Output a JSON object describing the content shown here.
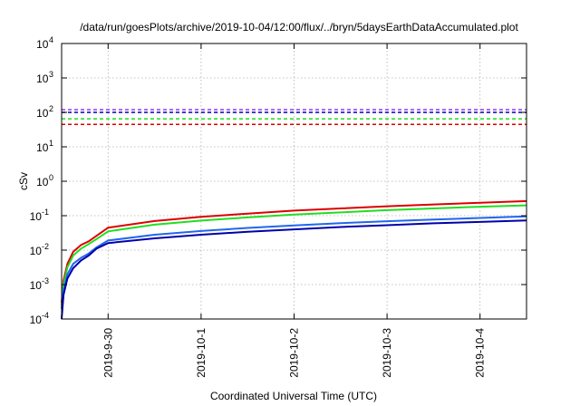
{
  "chart_data": {
    "type": "line",
    "title": "/data/run/goesPlots/archive/2019-10-04/12:00/flux/../bryn/5daysEarthDataAccumulated.plot",
    "xlabel": "Coordinated Universal Time (UTC)",
    "ylabel": "cSv",
    "y_scale": "log",
    "ylim": [
      0.0001,
      10000
    ],
    "xlim": [
      "2019-09-29 12:00",
      "2019-10-04 12:00"
    ],
    "x_ticks": [
      {
        "label": "2019-9-30",
        "t": "2019-09-30 00:00"
      },
      {
        "label": "2019-10-1",
        "t": "2019-10-01 00:00"
      },
      {
        "label": "2019-10-2",
        "t": "2019-10-02 00:00"
      },
      {
        "label": "2019-10-3",
        "t": "2019-10-03 00:00"
      },
      {
        "label": "2019-10-4",
        "t": "2019-10-04 00:00"
      }
    ],
    "y_ticks": [
      {
        "base": "10",
        "exp": "-4",
        "value": 0.0001
      },
      {
        "base": "10",
        "exp": "-3",
        "value": 0.001
      },
      {
        "base": "10",
        "exp": "-2",
        "value": 0.01
      },
      {
        "base": "10",
        "exp": "-1",
        "value": 0.1
      },
      {
        "base": "10",
        "exp": "0",
        "value": 1
      },
      {
        "base": "10",
        "exp": "1",
        "value": 10
      },
      {
        "base": "10",
        "exp": "2",
        "value": 100
      },
      {
        "base": "10",
        "exp": "3",
        "value": 1000
      },
      {
        "base": "10",
        "exp": "4",
        "value": 10000
      }
    ],
    "grid": true,
    "series": [
      {
        "color": "#dd0000",
        "style": "solid",
        "x": [
          "2019-09-29 12:00",
          "2019-09-29 12:30",
          "2019-09-29 13:30",
          "2019-09-29 15:00",
          "2019-09-29 17:00",
          "2019-09-29 19:00",
          "2019-09-29 21:00",
          "2019-09-30 00:00",
          "2019-09-30 12:00",
          "2019-10-01 00:00",
          "2019-10-01 12:00",
          "2019-10-02 00:00",
          "2019-10-02 12:00",
          "2019-10-03 00:00",
          "2019-10-03 12:00",
          "2019-10-04 00:00",
          "2019-10-04 12:00"
        ],
        "y": [
          0.0003,
          0.0013,
          0.004,
          0.009,
          0.014,
          0.018,
          0.026,
          0.045,
          0.07,
          0.093,
          0.115,
          0.14,
          0.162,
          0.188,
          0.212,
          0.238,
          0.265
        ]
      },
      {
        "color": "#22dd22",
        "style": "solid",
        "x": [
          "2019-09-29 12:00",
          "2019-09-29 12:30",
          "2019-09-29 13:30",
          "2019-09-29 15:00",
          "2019-09-29 17:00",
          "2019-09-29 19:00",
          "2019-09-29 21:00",
          "2019-09-30 00:00",
          "2019-09-30 12:00",
          "2019-10-01 00:00",
          "2019-10-01 12:00",
          "2019-10-02 00:00",
          "2019-10-02 12:00",
          "2019-10-03 00:00",
          "2019-10-03 12:00",
          "2019-10-04 00:00",
          "2019-10-04 12:00"
        ],
        "y": [
          0.00025,
          0.001,
          0.0032,
          0.007,
          0.011,
          0.015,
          0.021,
          0.035,
          0.055,
          0.072,
          0.089,
          0.108,
          0.124,
          0.145,
          0.162,
          0.182,
          0.2
        ]
      },
      {
        "color": "#2266ee",
        "style": "solid",
        "x": [
          "2019-09-29 12:00",
          "2019-09-29 12:30",
          "2019-09-29 13:30",
          "2019-09-29 15:00",
          "2019-09-29 17:00",
          "2019-09-29 19:00",
          "2019-09-29 21:00",
          "2019-09-30 00:00",
          "2019-09-30 12:00",
          "2019-10-01 00:00",
          "2019-10-01 12:00",
          "2019-10-02 00:00",
          "2019-10-02 12:00",
          "2019-10-03 00:00",
          "2019-10-03 12:00",
          "2019-10-04 00:00",
          "2019-10-04 12:00"
        ],
        "y": [
          0.0002,
          0.0007,
          0.002,
          0.004,
          0.006,
          0.008,
          0.012,
          0.019,
          0.028,
          0.036,
          0.044,
          0.052,
          0.061,
          0.069,
          0.077,
          0.086,
          0.095
        ]
      },
      {
        "color": "#0000aa",
        "style": "solid",
        "x": [
          "2019-09-29 12:00",
          "2019-09-29 12:30",
          "2019-09-29 13:30",
          "2019-09-29 15:00",
          "2019-09-29 17:00",
          "2019-09-29 19:00",
          "2019-09-29 21:00",
          "2019-09-30 00:00",
          "2019-09-30 12:00",
          "2019-10-01 00:00",
          "2019-10-01 12:00",
          "2019-10-02 00:00",
          "2019-10-02 12:00",
          "2019-10-03 00:00",
          "2019-10-03 12:00",
          "2019-10-04 00:00",
          "2019-10-04 12:00"
        ],
        "y": [
          0.0001,
          0.0005,
          0.0015,
          0.003,
          0.005,
          0.007,
          0.011,
          0.016,
          0.022,
          0.028,
          0.034,
          0.04,
          0.047,
          0.053,
          0.06,
          0.066,
          0.073
        ]
      },
      {
        "color": "#9933ff",
        "style": "dashed",
        "x": [
          "2019-09-29 12:00",
          "2019-10-04 12:00"
        ],
        "y": [
          120,
          120
        ]
      },
      {
        "color": "#0000aa",
        "style": "dashed",
        "x": [
          "2019-09-29 12:00",
          "2019-10-04 12:00"
        ],
        "y": [
          100,
          100
        ]
      },
      {
        "color": "#22dd22",
        "style": "dashed",
        "x": [
          "2019-09-29 12:00",
          "2019-10-04 12:00"
        ],
        "y": [
          65,
          65
        ]
      },
      {
        "color": "#dd0000",
        "style": "dashed",
        "x": [
          "2019-09-29 12:00",
          "2019-10-04 12:00"
        ],
        "y": [
          45,
          45
        ]
      }
    ]
  }
}
